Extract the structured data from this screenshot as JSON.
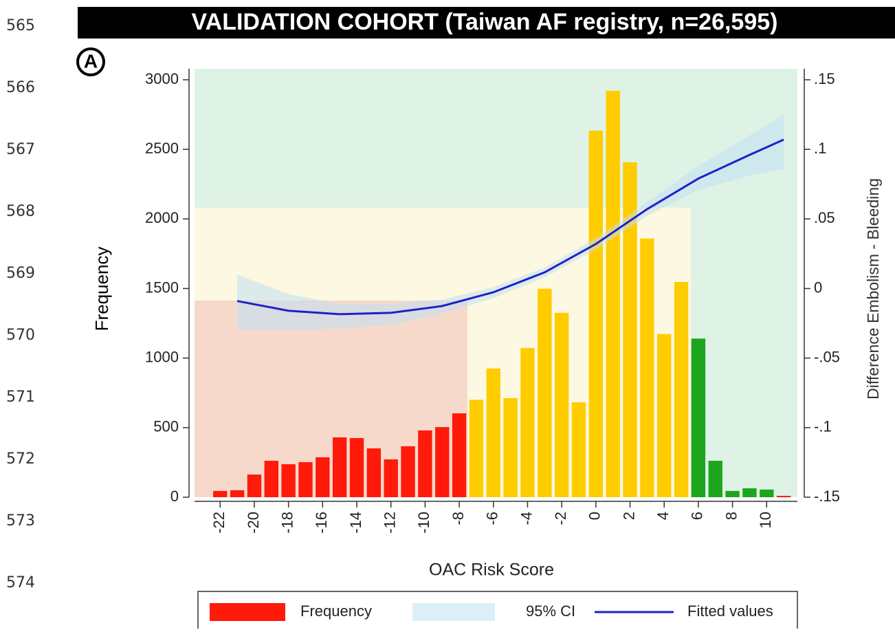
{
  "line_numbers": [
    565,
    566,
    567,
    568,
    569,
    570,
    571,
    572,
    573,
    574
  ],
  "chart_data": {
    "type": "bar",
    "title": "VALIDATION COHORT (Taiwan AF registry, n=26,595)",
    "panel_label": "A",
    "x_label": "OAC Risk Score",
    "y_label": "Frequency",
    "y2_label": "Difference Embolism - Bleeding",
    "xlim": [
      -23.5,
      11.8
    ],
    "xticks": [
      -22,
      -20,
      -18,
      -16,
      -14,
      -12,
      -10,
      -8,
      -6,
      -4,
      -2,
      0,
      2,
      4,
      6,
      8,
      10
    ],
    "ylim": [
      0,
      3000
    ],
    "yticks": [
      0,
      500,
      1000,
      1500,
      2000,
      2500,
      3000
    ],
    "y2lim": [
      -0.15,
      0.15
    ],
    "y2ticks": [
      {
        "value": 0.15,
        "label": ".15"
      },
      {
        "value": 0.1,
        "label": ".1"
      },
      {
        "value": 0.05,
        "label": ".05"
      },
      0,
      {
        "value": -0.05,
        "label": "-.05"
      },
      {
        "value": -0.1,
        "label": "-.1"
      },
      {
        "value": -0.15,
        "label": "-.15"
      }
    ],
    "series": [
      {
        "name": "Frequency",
        "color": "#ff1a0a",
        "x": [
          -22,
          -21,
          -20,
          -19,
          -18,
          -17,
          -16,
          -15,
          -14,
          -13,
          -12,
          -11,
          -10,
          -9,
          -8,
          -7,
          -6,
          -5,
          -4,
          -3,
          -2,
          -1,
          0,
          1,
          2,
          3,
          4,
          5,
          6,
          7,
          8,
          9,
          10,
          11
        ],
        "values": [
          45,
          50,
          163,
          262,
          237,
          252,
          287,
          430,
          425,
          351,
          272,
          366,
          480,
          504,
          603,
          700,
          925,
          712,
          1073,
          1498,
          1325,
          682,
          2635,
          2921,
          2407,
          1859,
          1172,
          1547,
          1140,
          262,
          45,
          64,
          55,
          10
        ],
        "bar_colors": [
          "#ff1a0a",
          "#ff1a0a",
          "#ff1a0a",
          "#ff1a0a",
          "#ff1a0a",
          "#ff1a0a",
          "#ff1a0a",
          "#ff1a0a",
          "#ff1a0a",
          "#ff1a0a",
          "#ff1a0a",
          "#ff1a0a",
          "#ff1a0a",
          "#ff1a0a",
          "#ff1a0a",
          "#ffcc00",
          "#ffcc00",
          "#ffcc00",
          "#ffcc00",
          "#ffcc00",
          "#ffcc00",
          "#ffcc00",
          "#ffcc00",
          "#ffcc00",
          "#ffcc00",
          "#ffcc00",
          "#ffcc00",
          "#ffcc00",
          "#1ea51e",
          "#1ea51e",
          "#1ea51e",
          "#1ea51e",
          "#1ea51e",
          "#ff1a0a"
        ]
      },
      {
        "name": "95% CI",
        "color": "#bfe0f2",
        "axis": "y2",
        "x": [
          -21,
          -18,
          -15,
          -12,
          -9,
          -6,
          -3,
          0,
          3,
          6,
          9,
          11
        ],
        "lower": [
          -0.03,
          -0.03,
          -0.029,
          -0.026,
          -0.018,
          -0.007,
          0.008,
          0.028,
          0.052,
          0.071,
          0.081,
          0.086
        ],
        "upper": [
          0.01,
          -0.004,
          -0.011,
          -0.011,
          -0.008,
          0.001,
          0.015,
          0.036,
          0.062,
          0.088,
          0.11,
          0.125
        ]
      },
      {
        "name": "Fitted values",
        "color": "#2020c8",
        "axis": "y2",
        "x": [
          -21,
          -18,
          -15,
          -12,
          -9,
          -6,
          -3,
          0,
          3,
          6,
          9,
          11
        ],
        "values": [
          -0.009,
          -0.016,
          -0.0185,
          -0.0175,
          -0.0126,
          -0.0027,
          0.0116,
          0.032,
          0.057,
          0.079,
          0.096,
          0.107
        ]
      }
    ]
  }
}
